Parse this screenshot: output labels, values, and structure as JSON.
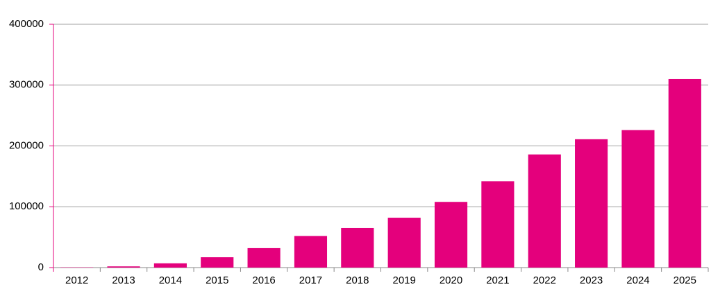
{
  "chart_data": {
    "type": "bar",
    "categories": [
      "2012",
      "2013",
      "2014",
      "2015",
      "2016",
      "2017",
      "2018",
      "2019",
      "2020",
      "2021",
      "2022",
      "2023",
      "2024",
      "2025"
    ],
    "values": [
      500,
      2000,
      7000,
      17000,
      32000,
      52000,
      65000,
      82000,
      108000,
      142000,
      186000,
      211000,
      226000,
      310000
    ],
    "color": "#e4007c",
    "ylim": [
      0,
      400000
    ],
    "yticks": [
      0,
      100000,
      200000,
      300000,
      400000
    ],
    "grid": true
  }
}
